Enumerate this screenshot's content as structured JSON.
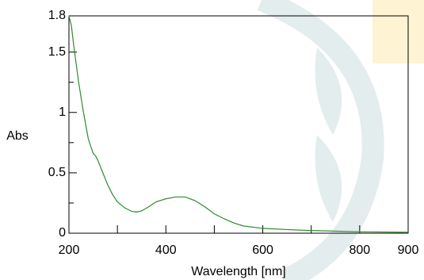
{
  "chart_data": {
    "type": "line",
    "x_label": "Wavelength [nm]",
    "y_label": "Abs",
    "x": [
      200,
      205,
      210,
      220,
      230,
      240,
      250,
      255,
      260,
      270,
      280,
      290,
      300,
      315,
      330,
      340,
      350,
      365,
      380,
      400,
      420,
      440,
      460,
      480,
      500,
      520,
      540,
      560,
      600,
      650,
      700,
      800,
      900
    ],
    "series": [
      {
        "color": "#2e8b2e",
        "values": [
          1.8,
          1.72,
          1.55,
          1.25,
          1.0,
          0.78,
          0.66,
          0.64,
          0.6,
          0.5,
          0.4,
          0.32,
          0.26,
          0.21,
          0.18,
          0.175,
          0.185,
          0.22,
          0.26,
          0.285,
          0.3,
          0.3,
          0.27,
          0.22,
          0.16,
          0.12,
          0.085,
          0.06,
          0.04,
          0.03,
          0.022,
          0.012,
          0.008
        ]
      }
    ],
    "xlim": [
      200,
      900
    ],
    "ylim": [
      0,
      1.8
    ],
    "xticks": [
      200,
      400,
      600,
      800,
      900
    ],
    "yticks": [
      0,
      0.5,
      1,
      1.5,
      1.8
    ],
    "xminorticks": [
      300,
      500,
      700
    ],
    "yminorticks": [
      0.25,
      0.75,
      1.25
    ]
  }
}
